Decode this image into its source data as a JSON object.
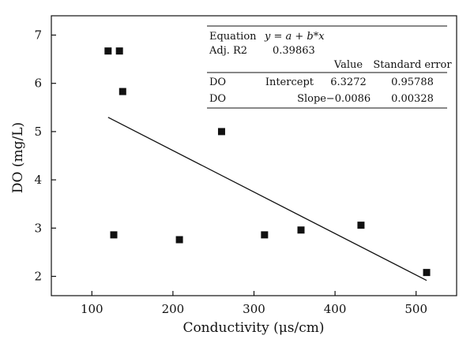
{
  "chart_data": {
    "type": "scatter",
    "title": "",
    "xlabel": "Conductivity (μs/cm)",
    "ylabel": "DO (mg/L)",
    "xlim": [
      50,
      550
    ],
    "ylim": [
      1.6,
      7.4
    ],
    "xticks": [
      100,
      200,
      300,
      400,
      500
    ],
    "yticks": [
      2,
      3,
      4,
      5,
      6,
      7
    ],
    "xtick_labels": [
      "100",
      "200",
      "300",
      "400",
      "500"
    ],
    "ytick_labels": [
      "2",
      "3",
      "4",
      "5",
      "6",
      "7"
    ],
    "grid": false,
    "series": [
      {
        "points": [
          {
            "x": 120,
            "y": 6.67
          },
          {
            "x": 134,
            "y": 6.67
          },
          {
            "x": 138,
            "y": 5.83
          },
          {
            "x": 127,
            "y": 2.86
          },
          {
            "x": 208,
            "y": 2.76
          },
          {
            "x": 260,
            "y": 5.0
          },
          {
            "x": 313,
            "y": 2.86
          },
          {
            "x": 358,
            "y": 2.96
          },
          {
            "x": 432,
            "y": 3.06
          },
          {
            "x": 513,
            "y": 2.08
          }
        ]
      }
    ],
    "fit": {
      "intercept": 6.3272,
      "slope": -0.0086,
      "x_range": [
        120,
        513
      ]
    },
    "stats_table": {
      "equation_label": "Equation",
      "equation": "y = a + b*x",
      "adj_r2_label": "Adj. R2",
      "adj_r2_value": "0.39863",
      "col_value": "Value",
      "col_error": "Standard error",
      "rows": [
        {
          "name": "DO",
          "param": "Intercept",
          "value": "6.3272",
          "error": "0.95788"
        },
        {
          "name": "DO",
          "param": "Slope",
          "value": "−0.0086",
          "error": "0.00328"
        }
      ]
    }
  }
}
